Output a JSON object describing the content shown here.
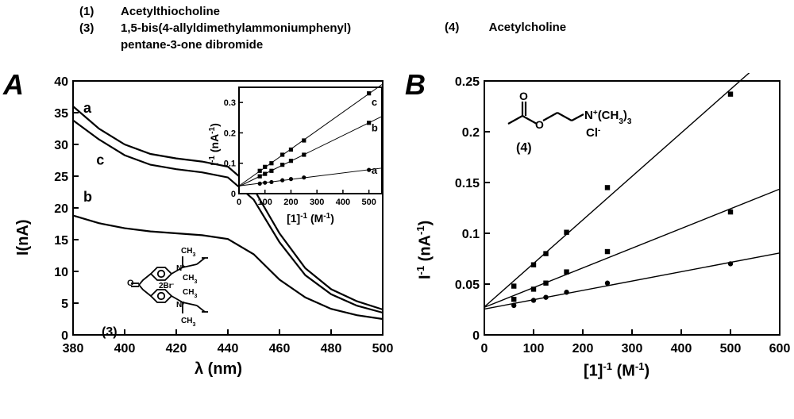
{
  "legend": {
    "item1_num": "(1)",
    "item1_text": "Acetylthiocholine",
    "item3_num": "(3)",
    "item3_text_line1": "1,5-bis(4-allyldimethylammoniumphenyl)",
    "item3_text_line2": "pentane-3-one dibromide",
    "item4_num": "(4)",
    "item4_text": "Acetylcholine"
  },
  "panelA": {
    "letter": "A",
    "type": "line",
    "xlabel": "λ (nm)",
    "ylabel": "I(nA)",
    "xlim": [
      380,
      500
    ],
    "ylim": [
      0,
      40
    ],
    "xtick_step": 20,
    "ytick_step": 5,
    "xticks": [
      380,
      400,
      420,
      440,
      460,
      480,
      500
    ],
    "yticks": [
      0,
      5,
      10,
      15,
      20,
      25,
      30,
      35,
      40
    ],
    "line_color": "#000000",
    "line_width": 2.2,
    "background_color": "#ffffff",
    "series": {
      "a": {
        "label": "a",
        "x": [
          380,
          390,
          400,
          410,
          420,
          430,
          440,
          450,
          460,
          470,
          480,
          490,
          500
        ],
        "y": [
          36,
          32.5,
          30,
          28.5,
          27.8,
          27.3,
          26.5,
          23.0,
          16.0,
          10.5,
          7.2,
          5.3,
          4.0
        ]
      },
      "c": {
        "label": "c",
        "x": [
          380,
          390,
          400,
          410,
          420,
          430,
          440,
          450,
          460,
          470,
          480,
          490,
          500
        ],
        "y": [
          33.8,
          30.8,
          28.3,
          26.8,
          26.1,
          25.6,
          24.8,
          21.3,
          14.6,
          9.4,
          6.4,
          4.6,
          3.5
        ]
      },
      "b": {
        "label": "b",
        "x": [
          380,
          390,
          400,
          410,
          420,
          430,
          440,
          450,
          460,
          470,
          480,
          490,
          500
        ],
        "y": [
          18.8,
          17.6,
          16.8,
          16.3,
          16.0,
          15.7,
          15.1,
          12.7,
          8.7,
          5.9,
          4.1,
          3.1,
          2.5
        ]
      }
    },
    "curve_label_positions": {
      "a": [
        384,
        35
      ],
      "c": [
        389,
        26.8
      ],
      "b": [
        384,
        21
      ]
    },
    "inset": {
      "type": "scatter-line",
      "xlabel": "[1]⁻¹ (M⁻¹)",
      "ylabel": "I⁻¹ (nA⁻¹)",
      "xlim": [
        0,
        550
      ],
      "ylim": [
        0,
        0.35
      ],
      "xticks": [
        0,
        100,
        200,
        300,
        400,
        500
      ],
      "yticks": [
        0,
        0.1,
        0.2,
        0.3
      ],
      "marker_color": "#000000",
      "line_width": 1,
      "series": {
        "c": {
          "label": "c",
          "x": [
            80,
            100,
            125,
            167,
            200,
            250,
            500
          ],
          "y": [
            0.075,
            0.088,
            0.1,
            0.128,
            0.145,
            0.175,
            0.33
          ],
          "marker": "square"
        },
        "b": {
          "label": "b",
          "x": [
            80,
            100,
            125,
            167,
            200,
            250,
            500
          ],
          "y": [
            0.057,
            0.065,
            0.075,
            0.095,
            0.108,
            0.128,
            0.233
          ],
          "marker": "square"
        },
        "a": {
          "label": "a",
          "x": [
            80,
            100,
            125,
            167,
            200,
            250,
            500
          ],
          "y": [
            0.033,
            0.036,
            0.038,
            0.044,
            0.048,
            0.053,
            0.078
          ],
          "marker": "circle"
        }
      },
      "curve_label_positions": {
        "c": [
          510,
          0.29
        ],
        "b": [
          510,
          0.205
        ],
        "a": [
          510,
          0.065
        ]
      }
    },
    "struct3_label": "(3)"
  },
  "panelB": {
    "letter": "B",
    "type": "scatter-line",
    "xlabel": "[1]⁻¹ (M⁻¹)",
    "ylabel": "I⁻¹ (nA⁻¹)",
    "xlim": [
      0,
      600
    ],
    "ylim": [
      0,
      0.25
    ],
    "xticks": [
      0,
      100,
      200,
      300,
      400,
      500,
      600
    ],
    "yticks": [
      0,
      0.05,
      0.1,
      0.15,
      0.2,
      0.25
    ],
    "marker_color": "#000000",
    "line_color": "#000000",
    "line_width": 1.4,
    "background_color": "#ffffff",
    "series": {
      "top": {
        "x": [
          60,
          100,
          125,
          167,
          250,
          500
        ],
        "y": [
          0.048,
          0.069,
          0.08,
          0.101,
          0.145,
          0.237
        ],
        "marker": "square"
      },
      "mid": {
        "x": [
          60,
          100,
          125,
          167,
          250,
          500
        ],
        "y": [
          0.035,
          0.045,
          0.051,
          0.062,
          0.082,
          0.121
        ],
        "marker": "square"
      },
      "bot": {
        "x": [
          60,
          100,
          125,
          167,
          250,
          500
        ],
        "y": [
          0.029,
          0.034,
          0.037,
          0.042,
          0.051,
          0.07
        ],
        "marker": "circle"
      }
    },
    "struct4_label": "(4)",
    "struct4_formula_main": "N⁺(CH₃)₃",
    "struct4_formula_sub": "Cl⁻"
  },
  "colors": {
    "ink": "#000000",
    "bg": "#ffffff"
  },
  "fontsizes": {
    "legend": 15,
    "panel_letter": 36,
    "axis_label": 20,
    "tick": 16,
    "inset_axis_label": 14,
    "inset_tick": 11,
    "curve_label": 16
  }
}
